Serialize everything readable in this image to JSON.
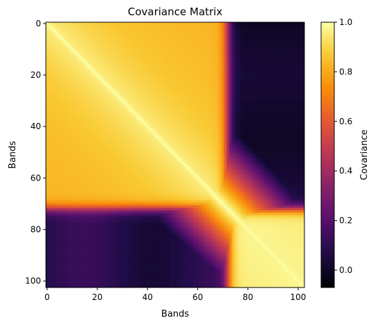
{
  "chart_data": {
    "type": "heatmap",
    "title": "Covariance Matrix",
    "xlabel": "Bands",
    "ylabel": "Bands",
    "colorbar_label": "Covariance",
    "colormap": "inferno",
    "n_bands": 103,
    "xlim": [
      0,
      102
    ],
    "ylim": [
      102,
      0
    ],
    "x_ticks": [
      0,
      20,
      40,
      60,
      80,
      100
    ],
    "y_ticks": [
      0,
      20,
      40,
      60,
      80,
      100
    ],
    "color_range": [
      -0.07,
      1.0
    ],
    "colorbar_ticks": [
      "0.0",
      "0.2",
      "0.4",
      "0.6",
      "0.8",
      "1.0"
    ],
    "blocks": {
      "block_a_bands": [
        0,
        71
      ],
      "block_b_bands": [
        73,
        102
      ],
      "within_block_a": 0.82,
      "within_block_b": 0.95,
      "cross_block_upper_right": 0.05,
      "cross_block_lower_left": 0.08
    }
  }
}
